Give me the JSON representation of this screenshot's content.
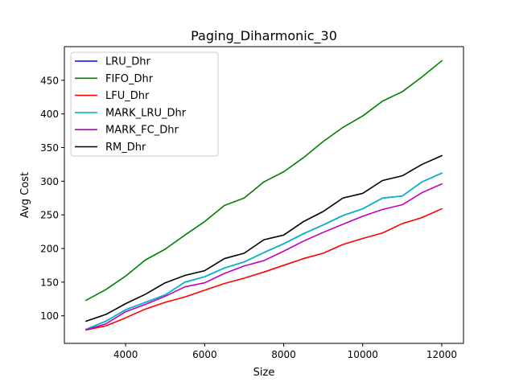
{
  "chart_data": {
    "type": "line",
    "title": "Paging_Diharmonic_30",
    "xlabel": "Size",
    "ylabel": "Avg Cost",
    "xlim": [
      2450,
      12550
    ],
    "ylim": [
      59,
      500
    ],
    "xticks": [
      4000,
      6000,
      8000,
      10000,
      12000
    ],
    "yticks": [
      100,
      150,
      200,
      250,
      300,
      350,
      400,
      450
    ],
    "grid": false,
    "legend_position": "top-left",
    "x": [
      3000,
      3500,
      4000,
      4500,
      5000,
      5500,
      6000,
      6500,
      7000,
      7500,
      8000,
      8500,
      9000,
      9500,
      10000,
      10500,
      11000,
      11500,
      12000
    ],
    "series": [
      {
        "name": "LRU_Dhr",
        "color": "#0000ff",
        "values": [
          80,
          92,
          109,
          120,
          131,
          150,
          158,
          171,
          180,
          194,
          207,
          222,
          235,
          249,
          259,
          275,
          278,
          299,
          312
        ]
      },
      {
        "name": "FIFO_Dhr",
        "color": "#008000",
        "values": [
          123,
          139,
          159,
          183,
          199,
          220,
          240,
          264,
          275,
          299,
          314,
          335,
          359,
          380,
          397,
          419,
          433,
          455,
          479
        ]
      },
      {
        "name": "LFU_Dhr",
        "color": "#ff0000",
        "values": [
          79,
          85,
          97,
          110,
          120,
          128,
          138,
          148,
          156,
          165,
          175,
          185,
          193,
          206,
          215,
          223,
          237,
          246,
          259
        ]
      },
      {
        "name": "MARK_LRU_Dhr",
        "color": "#00bfbf",
        "values": [
          80,
          92,
          109,
          120,
          131,
          150,
          158,
          171,
          180,
          194,
          207,
          222,
          235,
          249,
          259,
          275,
          278,
          299,
          312
        ]
      },
      {
        "name": "MARK_FC_Dhr",
        "color": "#bf00bf",
        "values": [
          79,
          88,
          106,
          117,
          129,
          143,
          149,
          163,
          174,
          182,
          196,
          211,
          224,
          236,
          248,
          258,
          265,
          283,
          296
        ]
      },
      {
        "name": "RM_Dhr",
        "color": "#000000",
        "values": [
          92,
          102,
          118,
          132,
          149,
          160,
          167,
          185,
          193,
          213,
          220,
          240,
          255,
          275,
          282,
          301,
          308,
          325,
          338
        ]
      }
    ]
  }
}
